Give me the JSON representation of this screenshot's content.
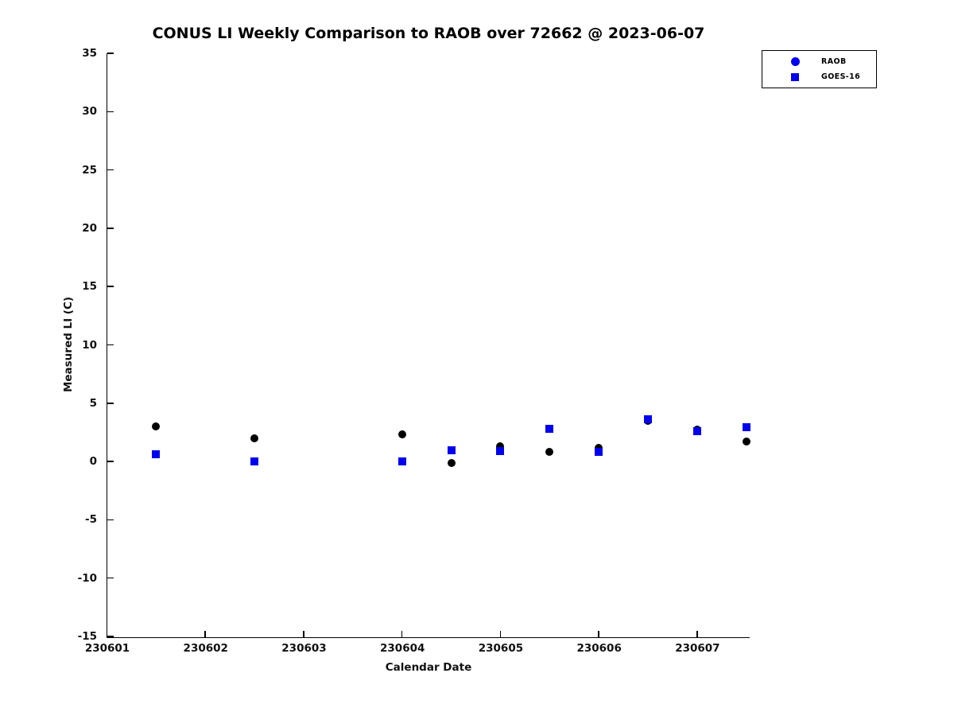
{
  "figure": {
    "background": "#ffffff",
    "accent_blue": "#0000ee",
    "marker_black": "#000000"
  },
  "chart_data": {
    "type": "scatter",
    "title": "CONUS LI Weekly Comparison to RAOB over 72662 @ 2023-06-07",
    "xlabel": "Calendar Date",
    "ylabel": "Measured LI (C)",
    "xlim": [
      230601,
      230607.53
    ],
    "ylim": [
      -15,
      35
    ],
    "xticks": [
      230601,
      230602,
      230603,
      230604,
      230605,
      230606,
      230607
    ],
    "yticks": [
      -15,
      -10,
      -5,
      0,
      5,
      10,
      15,
      20,
      25,
      30,
      35
    ],
    "grid": false,
    "legend_position": "outside-top-right",
    "x": [
      230601.5,
      230602.5,
      230604.0,
      230604.5,
      230605.0,
      230605.5,
      230606.0,
      230606.5,
      230607.0,
      230607.5
    ],
    "series": [
      {
        "name": "RAOB",
        "marker": "circle",
        "marker_color": "#000000",
        "legend_marker_color": "#0000ee",
        "marker_size": 10,
        "values": [
          3.0,
          2.0,
          2.3,
          -0.1,
          1.3,
          0.85,
          1.15,
          3.5,
          2.75,
          1.7
        ]
      },
      {
        "name": "GOES-16",
        "marker": "square",
        "marker_color": "#0000ee",
        "legend_marker_color": "#0000ee",
        "marker_size": 10,
        "values": [
          0.6,
          0.0,
          0.0,
          0.95,
          0.9,
          2.8,
          0.85,
          3.6,
          2.6,
          2.95
        ]
      }
    ]
  }
}
